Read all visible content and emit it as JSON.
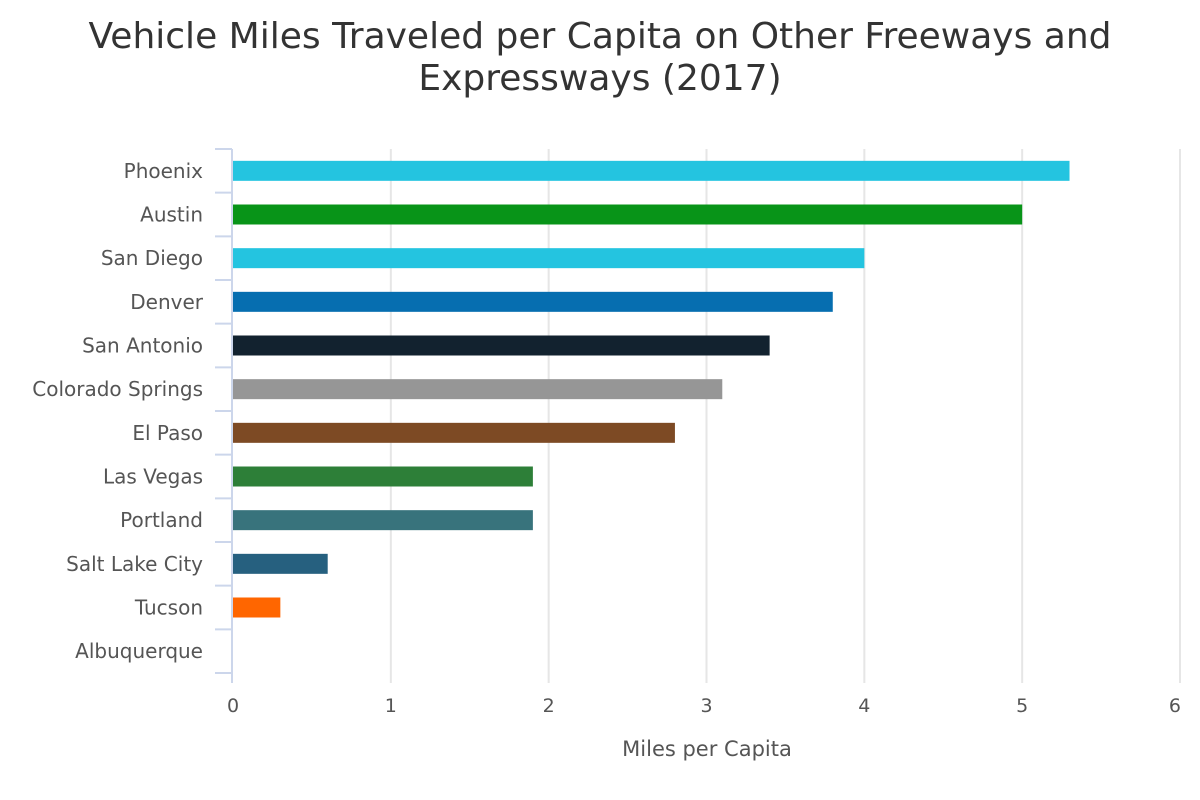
{
  "chart_data": {
    "type": "bar",
    "orientation": "horizontal",
    "title_lines": [
      "Vehicle Miles Traveled per Capita on Other Freeways and",
      "Expressways (2017)"
    ],
    "xlabel": "Miles per Capita",
    "ylabel": "",
    "xlim": [
      0,
      6
    ],
    "xticks": [
      0,
      1,
      2,
      3,
      4,
      5,
      6
    ],
    "grid": "vertical",
    "legend": "none",
    "categories": [
      "Phoenix",
      "Austin",
      "San Diego",
      "Denver",
      "San Antonio",
      "Colorado Springs",
      "El Paso",
      "Las Vegas",
      "Portland",
      "Salt Lake City",
      "Tucson",
      "Albuquerque"
    ],
    "values": [
      5.3,
      5.0,
      4.0,
      3.8,
      3.4,
      3.1,
      2.8,
      1.9,
      1.9,
      0.6,
      0.3,
      0
    ],
    "colors": [
      "#24c4e0",
      "#089418",
      "#24c4e0",
      "#066eb0",
      "#12222f",
      "#969696",
      "#7d4a24",
      "#2d7f38",
      "#38737c",
      "#26607f",
      "#ff6600",
      "#cccccc"
    ]
  }
}
